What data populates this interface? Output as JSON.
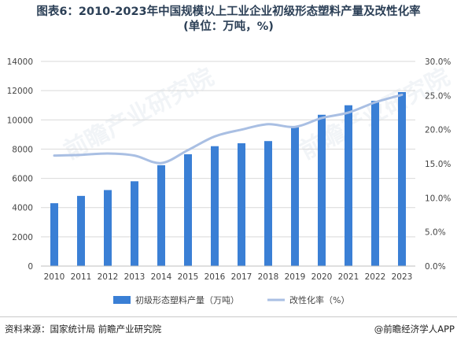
{
  "header": {
    "title_line1": "图表6：2010-2023年中国规模以上工业企业初级形态塑料产量及改性化率",
    "title_line2": "(单位：万吨，%)"
  },
  "footer": {
    "source": "资料来源：国家统计局 前瞻产业研究院",
    "credit": "@前瞻经济学人APP"
  },
  "watermark": {
    "text1": "前瞻产业研究院",
    "text2": "前瞻产业研究院"
  },
  "colors": {
    "bar": "#3a7fd5",
    "line": "#a9bfe3",
    "grid": "#d9d9d9"
  },
  "chart_data": {
    "type": "bar",
    "categories": [
      "2010",
      "2011",
      "2012",
      "2013",
      "2014",
      "2015",
      "2016",
      "2017",
      "2018",
      "2019",
      "2020",
      "2021",
      "2022",
      "2023"
    ],
    "series": [
      {
        "name": "初级形态塑料产量（万吨）",
        "type": "bar",
        "axis": "left",
        "values": [
          4300,
          4800,
          5200,
          5800,
          6900,
          7650,
          8200,
          8400,
          8550,
          9500,
          10350,
          11000,
          11300,
          11900
        ]
      },
      {
        "name": "改性化率（%）",
        "type": "line",
        "axis": "right",
        "values": [
          16.2,
          16.3,
          16.5,
          16.2,
          15.1,
          17.0,
          19.0,
          20.0,
          20.8,
          20.4,
          21.7,
          22.5,
          24.0,
          25.1
        ]
      }
    ],
    "ylim_left": [
      0,
      14000
    ],
    "yticks_left": [
      "0",
      "2000",
      "4000",
      "6000",
      "8000",
      "10000",
      "12000",
      "14000"
    ],
    "ylim_right": [
      0,
      30
    ],
    "yticks_right": [
      "0.0%",
      "5.0%",
      "10.0%",
      "15.0%",
      "20.0%",
      "25.0%",
      "30.0%"
    ],
    "grid": true,
    "legend_position": "bottom"
  }
}
